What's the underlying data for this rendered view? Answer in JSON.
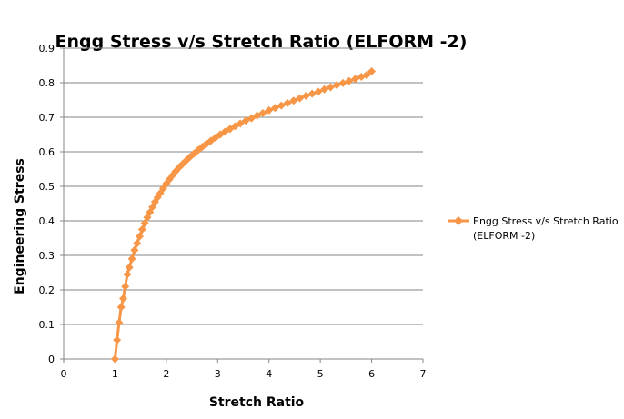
{
  "chart_data": {
    "type": "line",
    "title": "Engg Stress v/s Stretch Ratio (ELFORM -2)",
    "xlabel": "Stretch Ratio",
    "ylabel": "Engineering Stress",
    "xlim": [
      0,
      7
    ],
    "ylim": [
      0,
      0.9
    ],
    "xticks": [
      0,
      1,
      2,
      3,
      4,
      5,
      6,
      7
    ],
    "yticks": [
      0,
      0.1,
      0.2,
      0.3,
      0.4,
      0.5,
      0.6,
      0.7,
      0.8,
      0.9
    ],
    "grid": "horizontal major gridlines",
    "legend_position": "right",
    "series": [
      {
        "name_lines": [
          "Engg Stress v/s Stretch Ratio",
          "(ELFORM -2)"
        ],
        "color": "#f79646",
        "marker": "diamond",
        "x": [
          1.0,
          1.04,
          1.08,
          1.12,
          1.16,
          1.2,
          1.24,
          1.28,
          1.33,
          1.38,
          1.43,
          1.48,
          1.53,
          1.58,
          1.63,
          1.68,
          1.73,
          1.78,
          1.83,
          1.88,
          1.94,
          2.0,
          2.06,
          2.12,
          2.18,
          2.25,
          2.32,
          2.39,
          2.46,
          2.54,
          2.62,
          2.7,
          2.78,
          2.87,
          2.96,
          3.05,
          3.14,
          3.24,
          3.34,
          3.44,
          3.55,
          3.66,
          3.77,
          3.88,
          4.0,
          4.12,
          4.24,
          4.36,
          4.48,
          4.6,
          4.72,
          4.84,
          4.96,
          5.08,
          5.2,
          5.32,
          5.44,
          5.56,
          5.68,
          5.8,
          5.9,
          6.0
        ],
        "y": [
          0.0,
          0.055,
          0.105,
          0.15,
          0.175,
          0.21,
          0.245,
          0.265,
          0.29,
          0.315,
          0.335,
          0.355,
          0.375,
          0.393,
          0.41,
          0.425,
          0.44,
          0.455,
          0.468,
          0.48,
          0.494,
          0.508,
          0.52,
          0.532,
          0.543,
          0.555,
          0.565,
          0.575,
          0.585,
          0.595,
          0.605,
          0.614,
          0.623,
          0.632,
          0.641,
          0.65,
          0.658,
          0.666,
          0.674,
          0.682,
          0.69,
          0.697,
          0.705,
          0.712,
          0.72,
          0.727,
          0.734,
          0.741,
          0.748,
          0.755,
          0.762,
          0.768,
          0.774,
          0.781,
          0.787,
          0.793,
          0.799,
          0.805,
          0.811,
          0.817,
          0.822,
          0.833
        ]
      }
    ]
  }
}
